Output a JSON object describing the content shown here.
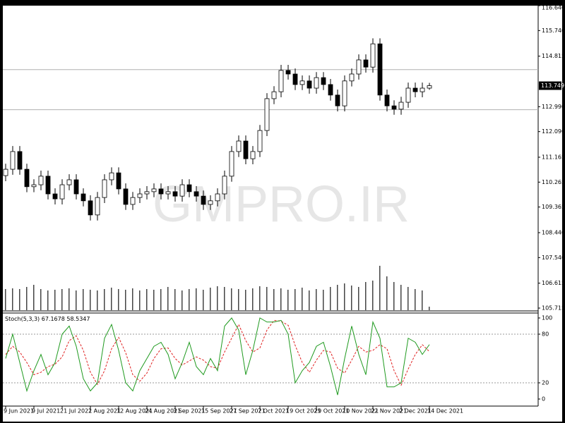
{
  "chart_data": {
    "type": "candlestick",
    "watermark": "GMPRO.IR",
    "categories": [
      "9 Jun 2021",
      null,
      null,
      null,
      "9 Jul 2021",
      null,
      null,
      null,
      "21 Jul 2021",
      null,
      null,
      null,
      "2 Aug 2021",
      null,
      null,
      null,
      "12 Aug 2021",
      null,
      null,
      null,
      "24 Aug 2021",
      null,
      null,
      null,
      "3 Sep 2021",
      null,
      null,
      null,
      "15 Sep 2021",
      null,
      null,
      null,
      "27 Sep 2021",
      null,
      null,
      null,
      "7 Oct 2021",
      null,
      null,
      null,
      "19 Oct 2021",
      null,
      null,
      null,
      "29 Oct 2021",
      null,
      null,
      null,
      "10 Nov 2021",
      null,
      null,
      null,
      "22 Nov 2021",
      null,
      null,
      null,
      "2 Dec 2021",
      null,
      null,
      null,
      "14 Dec 2021"
    ],
    "open": [
      110.5,
      110.73,
      111.37,
      110.73,
      110.1,
      110.17,
      110.48,
      109.84,
      109.66,
      110.17,
      110.35,
      109.84,
      109.59,
      109.08,
      109.71,
      110.35,
      110.6,
      110.02,
      109.46,
      109.71,
      109.84,
      109.92,
      110.02,
      109.84,
      109.92,
      109.76,
      110.17,
      109.92,
      109.76,
      109.46,
      109.59,
      109.84,
      110.48,
      111.37,
      111.75,
      111.11,
      111.37,
      112.13,
      113.28,
      113.53,
      114.3,
      114.17,
      113.79,
      113.92,
      113.66,
      114.04,
      113.79,
      113.41,
      113.02,
      113.92,
      114.17,
      114.68,
      114.42,
      115.26,
      113.41,
      113.02,
      112.9,
      113.15,
      113.66,
      113.53,
      113.66
    ],
    "high": [
      110.93,
      111.57,
      111.57,
      110.93,
      110.37,
      110.68,
      110.68,
      110.04,
      110.37,
      110.55,
      110.55,
      110.04,
      109.79,
      109.91,
      110.55,
      110.8,
      110.8,
      110.22,
      109.91,
      110.04,
      110.12,
      110.22,
      110.22,
      110.12,
      110.12,
      110.37,
      110.37,
      110.12,
      109.96,
      109.79,
      110.04,
      110.68,
      111.57,
      111.95,
      111.95,
      111.57,
      112.33,
      113.48,
      113.73,
      114.5,
      114.5,
      114.37,
      114.12,
      114.12,
      114.24,
      114.24,
      113.99,
      113.61,
      114.12,
      114.37,
      114.88,
      114.88,
      115.46,
      115.46,
      113.61,
      113.22,
      113.35,
      113.86,
      113.86,
      113.86,
      113.85
    ],
    "low": [
      110.3,
      110.53,
      110.53,
      109.9,
      109.9,
      109.97,
      109.64,
      109.46,
      109.46,
      109.97,
      109.64,
      109.39,
      108.88,
      108.88,
      109.51,
      110.15,
      109.82,
      109.26,
      109.26,
      109.51,
      109.64,
      109.72,
      109.64,
      109.64,
      109.56,
      109.56,
      109.72,
      109.56,
      109.26,
      109.26,
      109.39,
      109.64,
      110.28,
      111.17,
      110.91,
      110.91,
      111.17,
      111.93,
      113.08,
      113.33,
      113.97,
      113.59,
      113.59,
      113.46,
      113.46,
      113.59,
      113.21,
      112.82,
      112.82,
      113.72,
      113.97,
      114.22,
      114.22,
      113.21,
      112.82,
      112.7,
      112.7,
      112.95,
      113.33,
      113.33,
      113.6
    ],
    "close": [
      110.73,
      111.37,
      110.73,
      110.1,
      110.17,
      110.48,
      109.84,
      109.66,
      110.17,
      110.35,
      109.84,
      109.59,
      109.08,
      109.71,
      110.35,
      110.6,
      110.02,
      109.46,
      109.71,
      109.84,
      109.92,
      110.02,
      109.84,
      109.92,
      109.76,
      110.17,
      109.92,
      109.76,
      109.46,
      109.59,
      109.84,
      110.48,
      111.37,
      111.75,
      111.11,
      111.37,
      112.13,
      113.28,
      113.53,
      114.3,
      114.17,
      113.79,
      113.92,
      113.66,
      114.04,
      113.79,
      113.41,
      113.02,
      113.92,
      114.17,
      114.68,
      114.42,
      115.26,
      113.41,
      113.02,
      112.9,
      113.15,
      113.66,
      113.53,
      113.66,
      113.749
    ],
    "volume": [
      30,
      31,
      30,
      33,
      36,
      30,
      28,
      29,
      30,
      31,
      28,
      30,
      29,
      28,
      30,
      32,
      30,
      29,
      31,
      28,
      30,
      29,
      30,
      33,
      30,
      28,
      30,
      31,
      29,
      32,
      34,
      33,
      31,
      30,
      29,
      31,
      34,
      33,
      30,
      31,
      29,
      30,
      32,
      28,
      30,
      29,
      33,
      36,
      38,
      35,
      33,
      40,
      42,
      63,
      48,
      40,
      36,
      33,
      30,
      28,
      5
    ],
    "hlines": [
      114.33,
      112.88
    ],
    "ylim": [
      105.715,
      116.64
    ],
    "yticks": [
      {
        "value": 116.64,
        "label": "116.640"
      },
      {
        "value": 115.74,
        "label": "115.740"
      },
      114.815,
      {
        "value": 112.99,
        "label": "112.990"
      },
      {
        "value": 112.09,
        "label": "112.090"
      },
      111.165,
      110.265,
      109.365,
      {
        "value": 108.44,
        "label": "108.440"
      },
      {
        "value": 107.54,
        "label": "107.540"
      },
      106.615,
      105.715
    ],
    "stoch": {
      "title": "Stoch(5,3,3)",
      "k_color": "#1f9a1f",
      "d_color": "#e02020",
      "k": [
        50,
        80,
        45,
        10,
        35,
        55,
        30,
        45,
        80,
        90,
        65,
        25,
        10,
        20,
        75,
        92,
        60,
        20,
        10,
        35,
        50,
        65,
        70,
        55,
        25,
        45,
        70,
        40,
        30,
        50,
        35,
        90,
        100,
        85,
        30,
        60,
        100,
        95,
        95,
        97,
        80,
        20,
        35,
        45,
        65,
        70,
        40,
        5,
        50,
        90,
        55,
        30,
        95,
        75,
        15,
        15,
        20,
        75,
        70,
        55,
        67.1678
      ],
      "d": [
        55,
        65,
        58,
        45,
        30,
        33,
        40,
        43,
        52,
        72,
        78,
        60,
        33,
        18,
        35,
        62,
        76,
        57,
        30,
        22,
        32,
        50,
        62,
        63,
        50,
        42,
        47,
        52,
        48,
        40,
        38,
        58,
        75,
        92,
        72,
        58,
        63,
        85,
        97,
        96,
        91,
        66,
        45,
        33,
        48,
        60,
        58,
        38,
        32,
        48,
        65,
        58,
        60,
        67,
        62,
        35,
        17,
        37,
        55,
        67,
        58.5347
      ],
      "ylim": [
        0,
        100
      ],
      "yticks": [
        100,
        80,
        20,
        0
      ],
      "levels": [
        20,
        80
      ]
    }
  }
}
